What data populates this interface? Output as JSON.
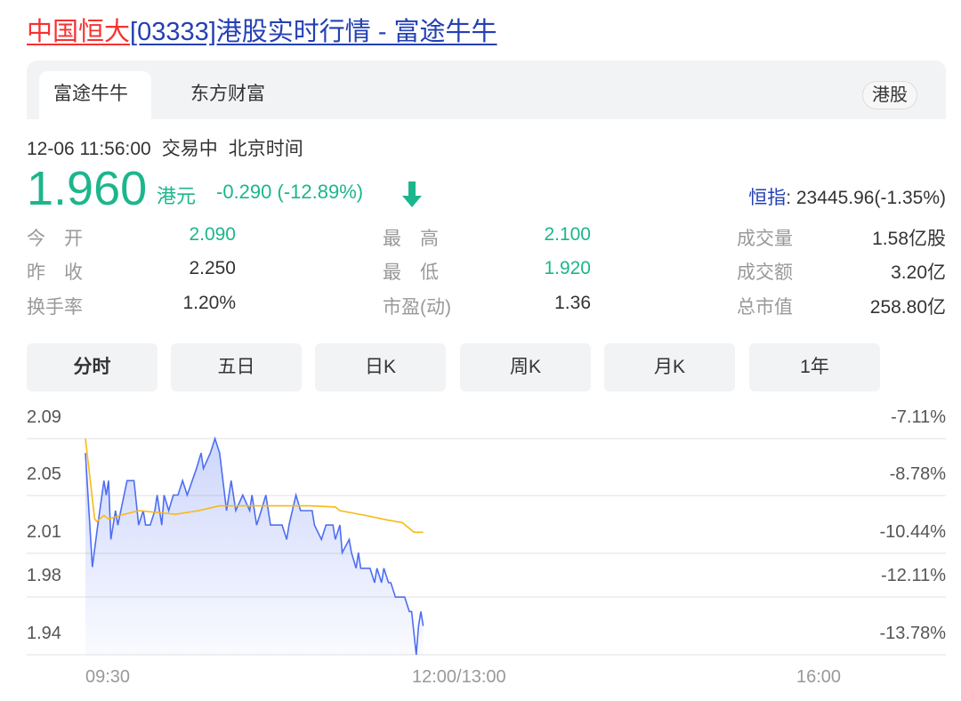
{
  "title": {
    "highlight": "中国恒大",
    "rest": "[03333]港股实时行情 - 富途牛牛"
  },
  "source_tabs": [
    {
      "label": "富途牛牛",
      "active": true
    },
    {
      "label": "东方财富",
      "active": false
    }
  ],
  "market_badge": "港股",
  "status": {
    "datetime": "12-06 11:56:00",
    "state": "交易中",
    "timezone": "北京时间"
  },
  "quote": {
    "price": "1.960",
    "currency": "港元",
    "change": "-0.290 (-12.89%)",
    "direction": "down"
  },
  "index": {
    "name": "恒指",
    "value": ": 23445.96(-1.35%)"
  },
  "stats": [
    {
      "label": "今　开",
      "value": "2.090",
      "color": "green"
    },
    {
      "label": "最　高",
      "value": "2.100",
      "color": "green"
    },
    {
      "label": "成交量",
      "value": "1.58亿股",
      "color": "normal"
    },
    {
      "label": "昨　收",
      "value": "2.250",
      "color": "normal"
    },
    {
      "label": "最　低",
      "value": "1.920",
      "color": "green"
    },
    {
      "label": "成交额",
      "value": "3.20亿",
      "color": "normal"
    },
    {
      "label": "换手率",
      "value": "1.20%",
      "color": "normal"
    },
    {
      "label": "市盈(动)",
      "value": "1.36",
      "color": "normal"
    },
    {
      "label": "总市值",
      "value": "258.80亿",
      "color": "normal"
    }
  ],
  "period_tabs": [
    {
      "label": "分时",
      "active": true
    },
    {
      "label": "五日"
    },
    {
      "label": "日K"
    },
    {
      "label": "周K"
    },
    {
      "label": "月K"
    },
    {
      "label": "1年"
    }
  ],
  "colors": {
    "up_down_green": "#1cb68c",
    "price_line": "#4e6ef2",
    "avg_line": "#f9b816",
    "title_red": "#f73131",
    "link_blue": "#2440b3"
  },
  "chart_data": {
    "type": "line",
    "y_ticks_left": [
      "2.09",
      "2.05",
      "2.01",
      "1.98",
      "1.94"
    ],
    "y_ticks_right": [
      "-7.11%",
      "-8.78%",
      "-10.44%",
      "-12.11%",
      "-13.78%"
    ],
    "x_ticks": [
      "09:30",
      "12:00/13:00",
      "16:00"
    ],
    "ylim": [
      1.92,
      2.1
    ],
    "grid": true,
    "series": [
      {
        "key": "price",
        "fill": true,
        "points": [
          [
            "09:30",
            2.088
          ],
          [
            "09:33",
            1.993
          ],
          [
            "09:35",
            2.023
          ],
          [
            "09:38",
            2.065
          ],
          [
            "09:39",
            2.053
          ],
          [
            "09:40",
            2.065
          ],
          [
            "09:41",
            2.016
          ],
          [
            "09:43",
            2.04
          ],
          [
            "09:44",
            2.028
          ],
          [
            "09:48",
            2.065
          ],
          [
            "09:51",
            2.065
          ],
          [
            "09:53",
            2.028
          ],
          [
            "09:55",
            2.04
          ],
          [
            "09:56",
            2.028
          ],
          [
            "09:58",
            2.028
          ],
          [
            "10:00",
            2.04
          ],
          [
            "10:01",
            2.053
          ],
          [
            "10:03",
            2.028
          ],
          [
            "10:04",
            2.053
          ],
          [
            "10:06",
            2.04
          ],
          [
            "10:08",
            2.053
          ],
          [
            "10:10",
            2.053
          ],
          [
            "10:12",
            2.065
          ],
          [
            "10:14",
            2.053
          ],
          [
            "10:18",
            2.075
          ],
          [
            "10:20",
            2.088
          ],
          [
            "10:21",
            2.075
          ],
          [
            "10:24",
            2.088
          ],
          [
            "10:26",
            2.1
          ],
          [
            "10:28",
            2.088
          ],
          [
            "10:31",
            2.04
          ],
          [
            "10:33",
            2.065
          ],
          [
            "10:35",
            2.04
          ],
          [
            "10:38",
            2.053
          ],
          [
            "10:41",
            2.04
          ],
          [
            "10:42",
            2.053
          ],
          [
            "10:44",
            2.028
          ],
          [
            "10:46",
            2.04
          ],
          [
            "10:48",
            2.053
          ],
          [
            "10:50",
            2.028
          ],
          [
            "10:55",
            2.028
          ],
          [
            "10:57",
            2.016
          ],
          [
            "10:58",
            2.028
          ],
          [
            "11:01",
            2.053
          ],
          [
            "11:03",
            2.04
          ],
          [
            "11:08",
            2.04
          ],
          [
            "11:09",
            2.028
          ],
          [
            "11:12",
            2.016
          ],
          [
            "11:14",
            2.028
          ],
          [
            "11:17",
            2.028
          ],
          [
            "11:18",
            2.016
          ],
          [
            "11:20",
            2.028
          ],
          [
            "11:21",
            2.005
          ],
          [
            "11:24",
            2.016
          ],
          [
            "11:25",
            2.005
          ],
          [
            "11:27",
            1.992
          ],
          [
            "11:28",
            2.005
          ],
          [
            "11:29",
            1.992
          ],
          [
            "11:33",
            1.992
          ],
          [
            "11:35",
            1.98
          ],
          [
            "11:36",
            1.992
          ],
          [
            "11:38",
            1.98
          ],
          [
            "11:39",
            1.992
          ],
          [
            "11:41",
            1.98
          ],
          [
            "11:42",
            1.98
          ],
          [
            "11:44",
            1.968
          ],
          [
            "11:48",
            1.968
          ],
          [
            "11:50",
            1.956
          ],
          [
            "11:51",
            1.956
          ],
          [
            "11:53",
            1.92
          ],
          [
            "11:54",
            1.944
          ],
          [
            "11:55",
            1.956
          ],
          [
            "11:56",
            1.944
          ]
        ]
      },
      {
        "key": "average",
        "fill": false,
        "points": [
          [
            "09:30",
            2.1
          ],
          [
            "09:34",
            2.033
          ],
          [
            "09:35",
            2.031
          ],
          [
            "09:38",
            2.036
          ],
          [
            "09:40",
            2.033
          ],
          [
            "09:45",
            2.036
          ],
          [
            "09:53",
            2.04
          ],
          [
            "10:09",
            2.037
          ],
          [
            "10:19",
            2.04
          ],
          [
            "10:28",
            2.044
          ],
          [
            "11:07",
            2.044
          ],
          [
            "11:18",
            2.043
          ],
          [
            "11:20",
            2.04
          ],
          [
            "11:31",
            2.036
          ],
          [
            "11:41",
            2.032
          ],
          [
            "11:47",
            2.03
          ],
          [
            "11:52",
            2.022
          ],
          [
            "11:56",
            2.022
          ]
        ]
      }
    ]
  }
}
